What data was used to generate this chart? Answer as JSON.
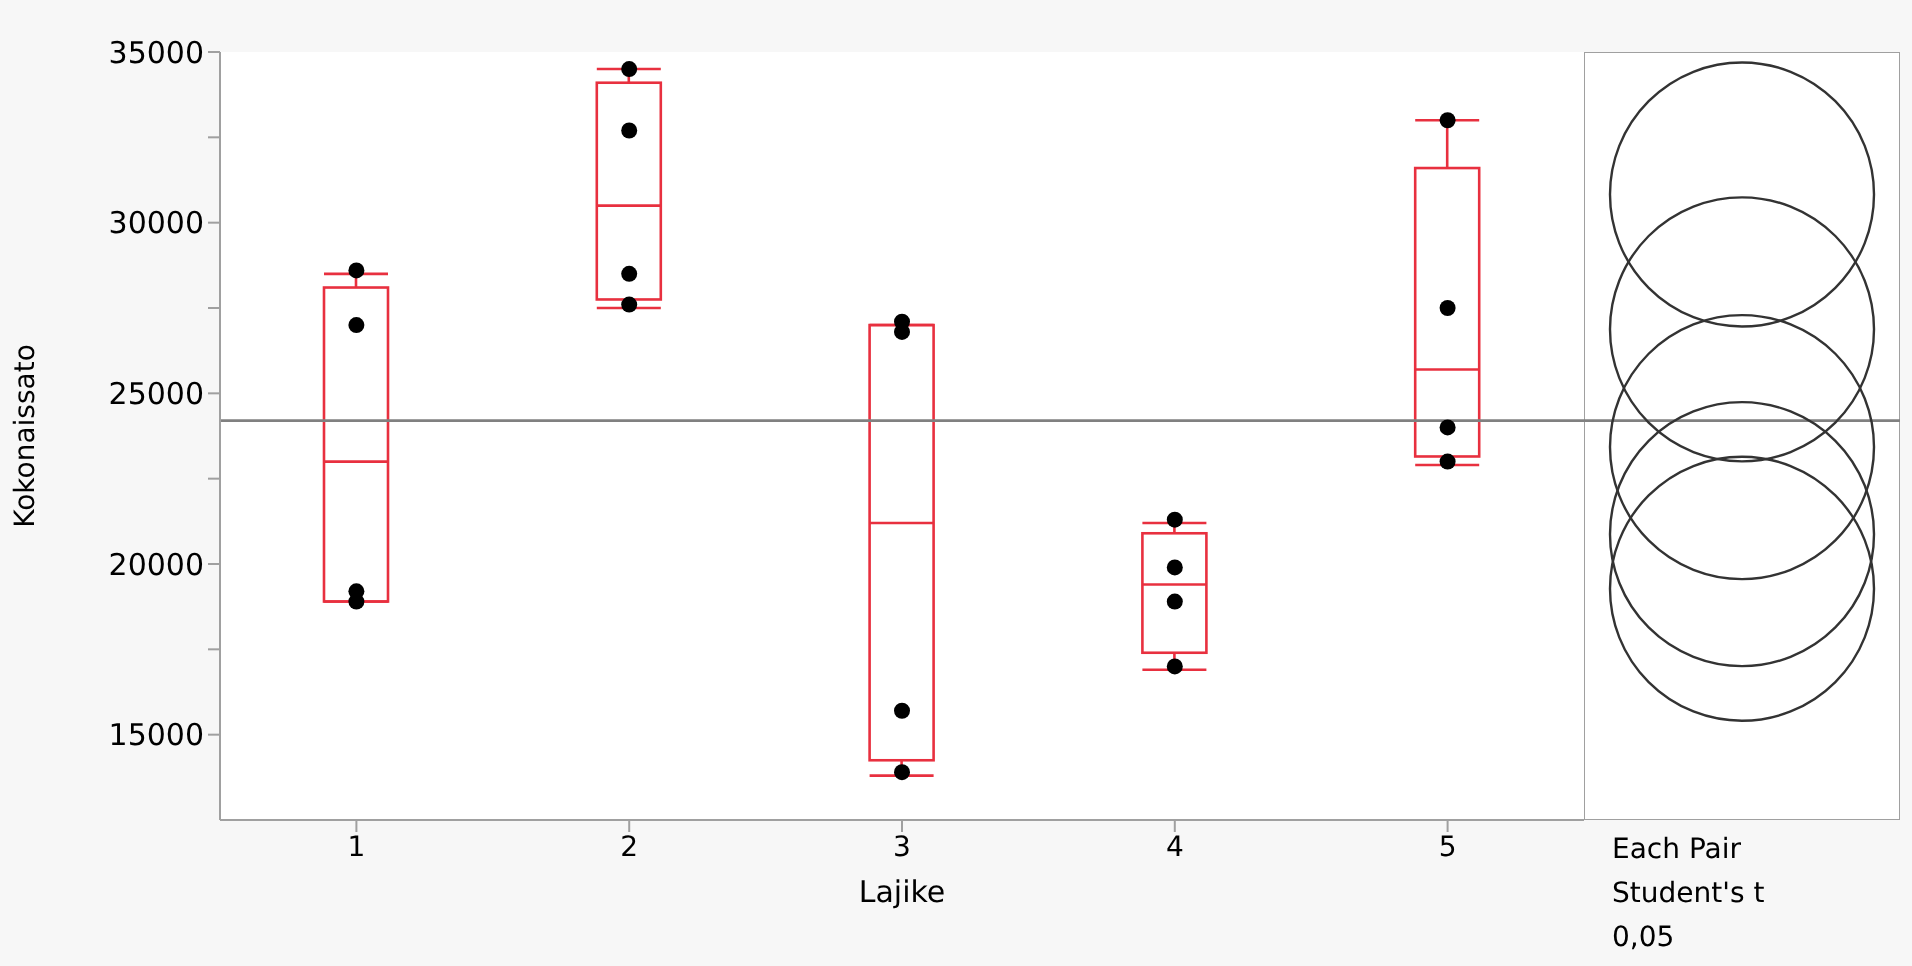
{
  "chart_data": {
    "type": "box",
    "xlabel": "Lajike",
    "ylabel": "Kokonaissato",
    "categories": [
      "1",
      "2",
      "3",
      "4",
      "5"
    ],
    "color": "#e8303f",
    "boxes": [
      {
        "low": 18900,
        "q1": 18900,
        "median": 23000,
        "q3": 28100,
        "high": 28500
      },
      {
        "low": 27500,
        "q1": 27750,
        "median": 30500,
        "q3": 34100,
        "high": 34500
      },
      {
        "low": 13800,
        "q1": 14250,
        "median": 21200,
        "q3": 27000,
        "high": 27000
      },
      {
        "low": 16900,
        "q1": 17400,
        "median": 19400,
        "q3": 20900,
        "high": 21200
      },
      {
        "low": 22900,
        "q1": 23150,
        "median": 25700,
        "q3": 31600,
        "high": 33000
      }
    ],
    "series": [
      {
        "type": "scatter",
        "color": "#000000",
        "x": [
          "1",
          "1",
          "1",
          "1",
          "2",
          "2",
          "2",
          "2",
          "3",
          "3",
          "3",
          "3",
          "4",
          "4",
          "4",
          "4",
          "5",
          "5",
          "5",
          "5"
        ],
        "values": [
          28600,
          27000,
          19200,
          18900,
          34500,
          32700,
          28500,
          27600,
          27100,
          26800,
          15700,
          13900,
          21300,
          19900,
          18900,
          17000,
          33000,
          27500,
          24000,
          23000
        ]
      }
    ],
    "ylim": [
      12500,
      35000
    ],
    "yticks": [
      15000,
      {
        "value": 17500,
        "label": null
      },
      20000,
      {
        "value": 22500,
        "label": null
      },
      25000,
      {
        "value": 27500,
        "label": null
      },
      30000,
      {
        "value": 32500,
        "label": null
      },
      35000
    ],
    "ref_lines": [
      {
        "axis": "y",
        "value": 24200,
        "color": "#808080"
      }
    ],
    "grid": false,
    "legend": false,
    "annotations": [
      "Each Pair Student's t 0,05"
    ]
  }
}
